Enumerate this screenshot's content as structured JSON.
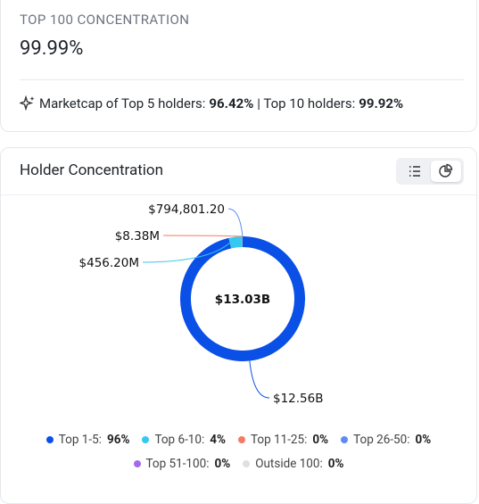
{
  "summary": {
    "label": "TOP 100 CONCENTRATION",
    "value": "99.99%",
    "note": {
      "top5_text": "Marketcap of Top 5 holders:",
      "top5_value": "96.42%",
      "top10_text": "| Top 10 holders:",
      "top10_value": "99.92%"
    }
  },
  "chart_data": {
    "type": "pie",
    "title": "Holder Concentration",
    "center_label": "$13.03B",
    "categories": [
      "Top 1-5:",
      "Top 6-10:",
      "Top 11-25:",
      "Top 26-50:",
      "Top 51-100:",
      "Outside 100:"
    ],
    "values": [
      12560000000,
      456200000,
      8380000,
      794801.2,
      null,
      null
    ],
    "value_labels": [
      "$12.56B",
      "$456.20M",
      "$8.38M",
      "$794,801.20",
      null,
      null
    ],
    "shares": [
      "96%",
      "4%",
      "0%",
      "0%",
      "0%",
      "0%"
    ],
    "colors": [
      "#0a4fe6",
      "#35c8f0",
      "#f47b63",
      "#5b8cf5",
      "#a46ae8",
      "#dcdfe4"
    ]
  }
}
